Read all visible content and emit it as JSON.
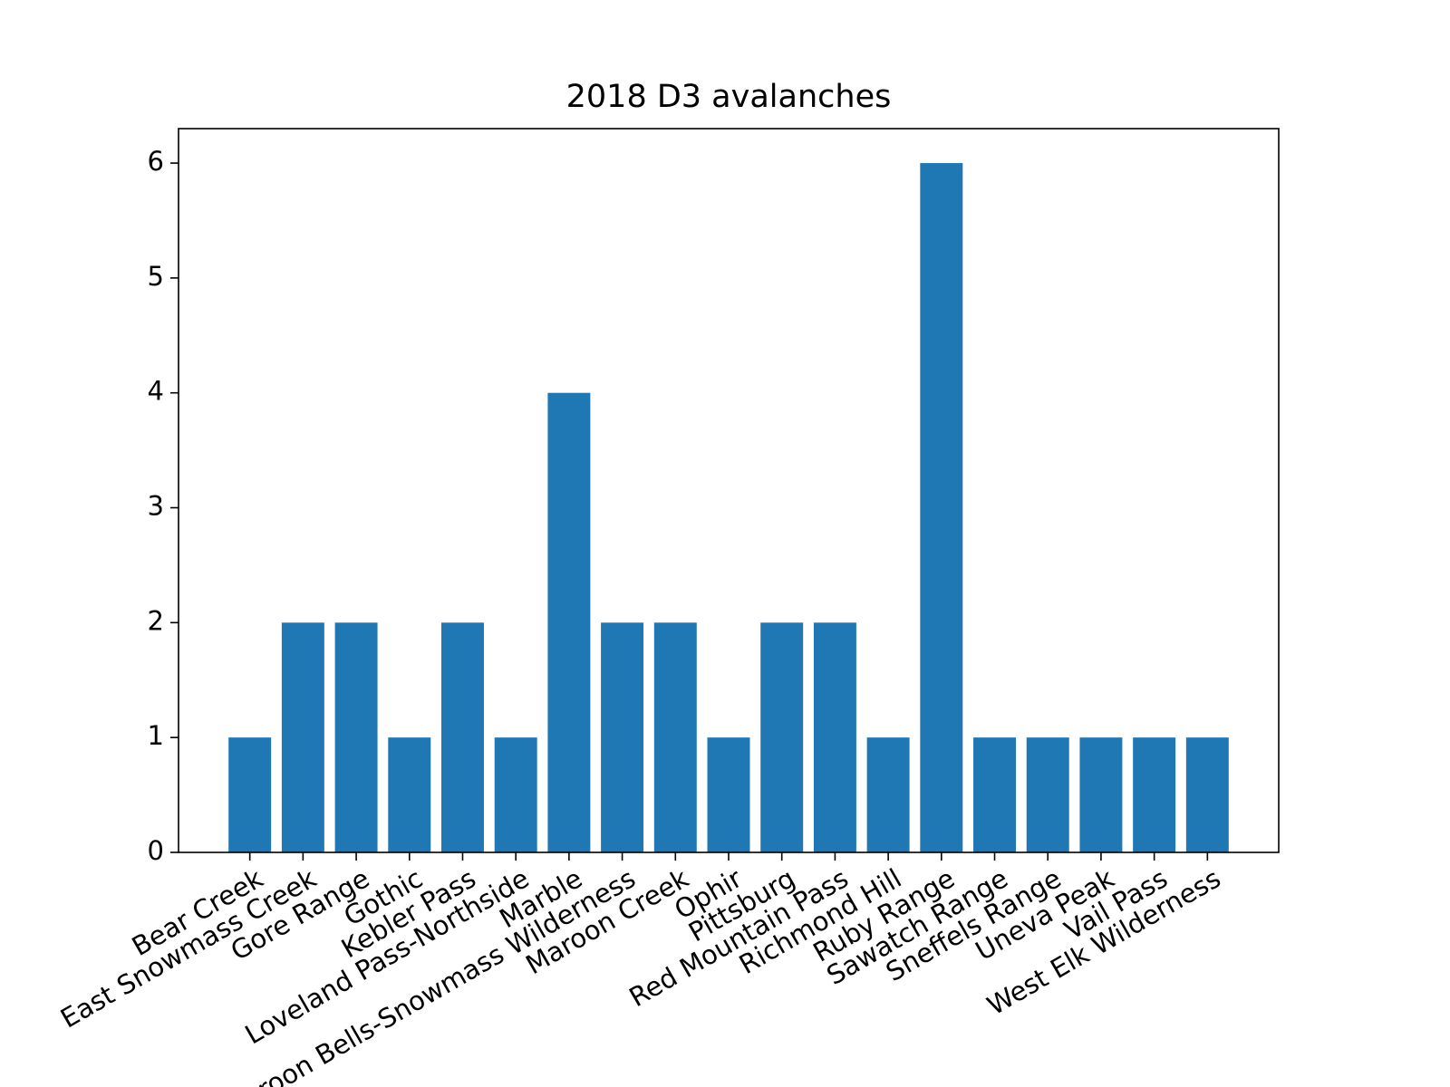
{
  "chart_data": {
    "type": "bar",
    "title": "2018 D3 avalanches",
    "categories": [
      "Bear Creek",
      "East Snowmass Creek",
      "Gore Range",
      "Gothic",
      "Kebler Pass",
      "Loveland Pass-Northside",
      "Marble",
      "Maroon Bells-Snowmass Wilderness",
      "Maroon Creek",
      "Ophir",
      "Pittsburg",
      "Red Mountain Pass",
      "Richmond Hill",
      "Ruby Range",
      "Sawatch Range",
      "Sneffels Range",
      "Uneva Peak",
      "Vail Pass",
      "West Elk Wilderness"
    ],
    "values": [
      1,
      2,
      2,
      1,
      2,
      1,
      4,
      2,
      2,
      1,
      2,
      2,
      1,
      6,
      1,
      1,
      1,
      1,
      1
    ],
    "color": "#1f77b4",
    "ylim": [
      0,
      6.3
    ],
    "yticks": [
      0,
      1,
      2,
      3,
      4,
      5,
      6
    ],
    "grid": false
  }
}
